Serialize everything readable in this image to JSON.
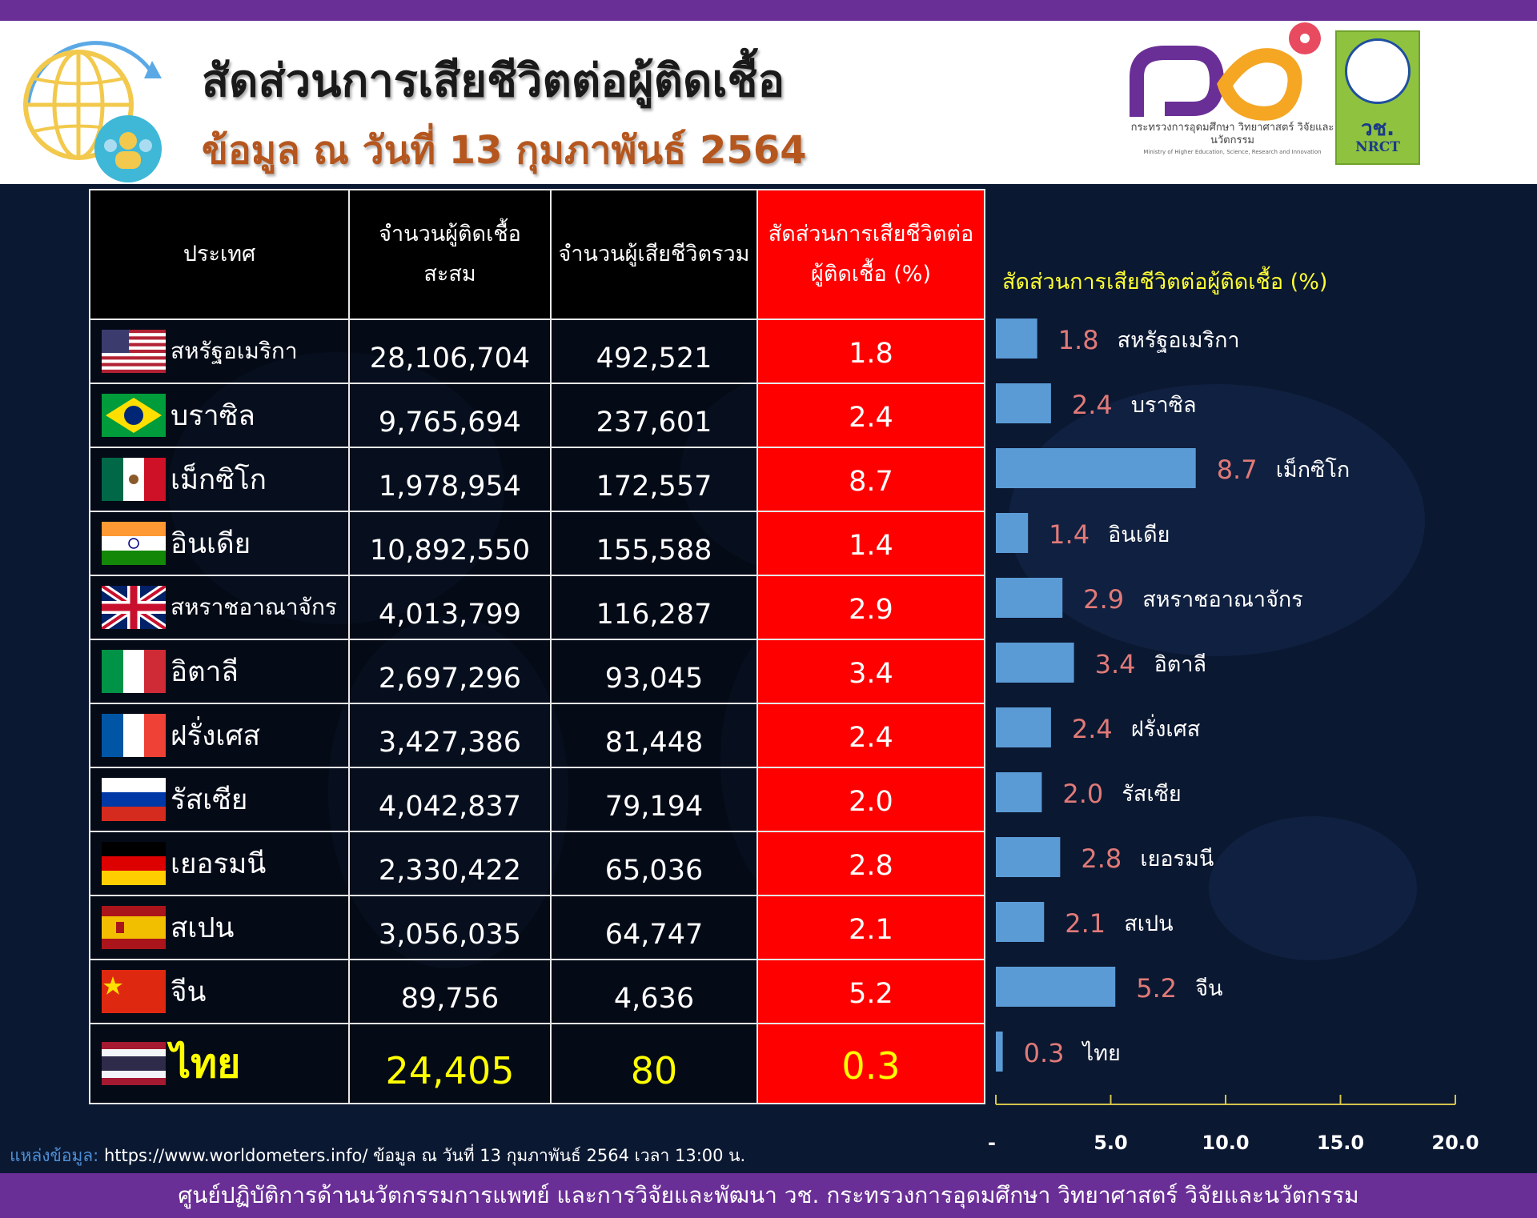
{
  "header": {
    "title": "สัดส่วนการเสียชีวิตต่อผู้ติดเชื้อ",
    "subtitle": "ข้อมูล ณ วันที่ 13 กุมภาพันธ์ 2564",
    "logo1_text": "กระทรวงการอุดมศึกษา วิทยาศาสตร์ วิจัยและนวัตกรรม",
    "logo1_sub": "Ministry of Higher Education, Science, Research and Innovation",
    "logo2_text1": "วช.",
    "logo2_text2": "NRCT"
  },
  "table": {
    "headers": {
      "country": "ประเทศ",
      "cases": "จำนวนผู้ติดเชื้อสะสม",
      "deaths": "จำนวนผู้เสียชีวิตรวม",
      "ratio": "สัดส่วนการเสียชีวิตต่อผู้ติดเชื้อ (%)"
    },
    "rows": [
      {
        "country": "สหรัฐอเมริกา",
        "cases": "28,106,704",
        "deaths": "492,521",
        "ratio": "1.8",
        "flag": "usa-flag-icon"
      },
      {
        "country": "บราซิล",
        "cases": "9,765,694",
        "deaths": "237,601",
        "ratio": "2.4",
        "flag": "brazil-flag-icon"
      },
      {
        "country": "เม็กซิโก",
        "cases": "1,978,954",
        "deaths": "172,557",
        "ratio": "8.7",
        "flag": "mexico-flag-icon"
      },
      {
        "country": "อินเดีย",
        "cases": "10,892,550",
        "deaths": "155,588",
        "ratio": "1.4",
        "flag": "india-flag-icon"
      },
      {
        "country": "สหราชอาณาจักร",
        "cases": "4,013,799",
        "deaths": "116,287",
        "ratio": "2.9",
        "flag": "uk-flag-icon"
      },
      {
        "country": "อิตาลี",
        "cases": "2,697,296",
        "deaths": "93,045",
        "ratio": "3.4",
        "flag": "italy-flag-icon"
      },
      {
        "country": "ฝรั่งเศส",
        "cases": "3,427,386",
        "deaths": "81,448",
        "ratio": "2.4",
        "flag": "france-flag-icon"
      },
      {
        "country": "รัสเซีย",
        "cases": "4,042,837",
        "deaths": "79,194",
        "ratio": "2.0",
        "flag": "russia-flag-icon"
      },
      {
        "country": "เยอรมนี",
        "cases": "2,330,422",
        "deaths": "65,036",
        "ratio": "2.8",
        "flag": "germany-flag-icon"
      },
      {
        "country": "สเปน",
        "cases": "3,056,035",
        "deaths": "64,747",
        "ratio": "2.1",
        "flag": "spain-flag-icon"
      },
      {
        "country": "จีน",
        "cases": "89,756",
        "deaths": "4,636",
        "ratio": "5.2",
        "flag": "china-flag-icon"
      },
      {
        "country": "ไทย",
        "cases": "24,405",
        "deaths": "80",
        "ratio": "0.3",
        "flag": "thailand-flag-icon"
      }
    ]
  },
  "chart_data": {
    "type": "bar",
    "orientation": "horizontal",
    "title": "สัดส่วนการเสียชีวิตต่อผู้ติดเชื้อ (%)",
    "categories": [
      "สหรัฐอเมริกา",
      "บราซิล",
      "เม็กซิโก",
      "อินเดีย",
      "สหราชอาณาจักร",
      "อิตาลี",
      "ฝรั่งเศส",
      "รัสเซีย",
      "เยอรมนี",
      "สเปน",
      "จีน",
      "ไทย"
    ],
    "values": [
      1.8,
      2.4,
      8.7,
      1.4,
      2.9,
      3.4,
      2.4,
      2.0,
      2.8,
      2.1,
      5.2,
      0.3
    ],
    "value_labels": [
      "1.8",
      "2.4",
      "8.7",
      "1.4",
      "2.9",
      "3.4",
      "2.4",
      "2.0",
      "2.8",
      "2.1",
      "5.2",
      "0.3"
    ],
    "xlim": [
      0,
      20
    ],
    "xticks": [
      "-",
      "5.0",
      "10.0",
      "15.0",
      "20.0"
    ],
    "bar_color": "#5b9bd5",
    "label_color": "#e07a78",
    "grid": false,
    "legend": false
  },
  "source": {
    "label": "แหล่งข้อมูล:",
    "text": "https://www.worldometers.info/ ข้อมูล ณ วันที่ 13 กุมภาพันธ์ 2564 เวลา 13:00 น."
  },
  "footer": "ศูนย์ปฏิบัติการด้านนวัตกรรมการแพทย์ และการวิจัยและพัฒนา วช. กระทรวงการอุดมศึกษา วิทยาศาสตร์ วิจัยและนวัตกรรม"
}
